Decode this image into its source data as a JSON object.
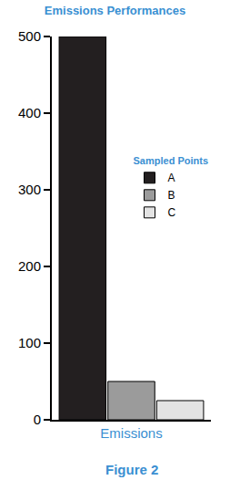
{
  "chart_data": {
    "type": "bar",
    "title": "Emissions Performances",
    "categories": [
      "Emissions"
    ],
    "series": [
      {
        "name": "A",
        "color": "#231f20",
        "values": [
          500
        ]
      },
      {
        "name": "B",
        "color": "#9b9b9b",
        "values": [
          50
        ]
      },
      {
        "name": "C",
        "color": "#e3e3e3",
        "values": [
          25
        ]
      }
    ],
    "ylim": [
      0,
      500
    ],
    "yticks": [
      0,
      100,
      200,
      300,
      400,
      500
    ],
    "grid": false,
    "legend": "right",
    "legend_title": "Sampled Points",
    "annotations": [
      "Figure 2"
    ]
  }
}
